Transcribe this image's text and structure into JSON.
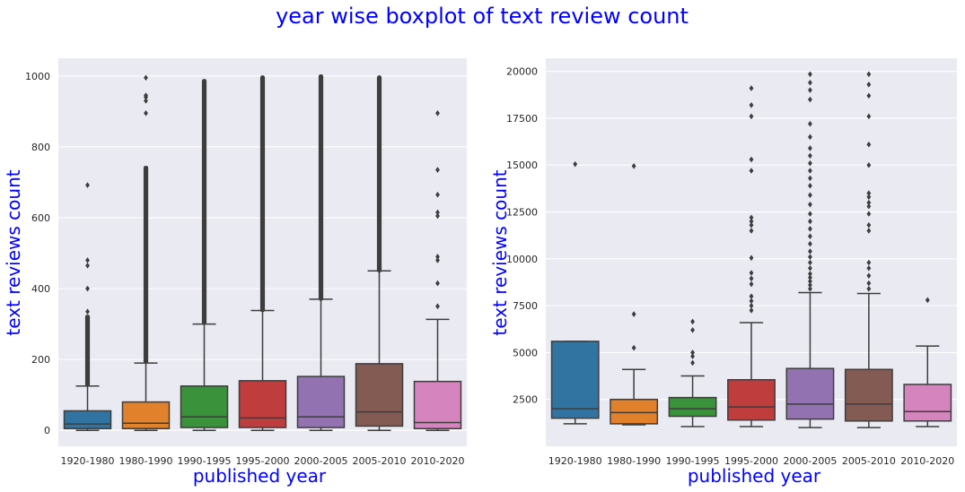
{
  "figure": {
    "title": "year wise boxplot of text review count"
  },
  "chart_data": [
    {
      "type": "box",
      "xlabel": "published year",
      "ylabel": "text reviews count",
      "ylim": [
        -45,
        1050
      ],
      "yticks": [
        0,
        200,
        400,
        600,
        800,
        1000
      ],
      "grid": true,
      "categories": [
        "1920-1980",
        "1980-1990",
        "1990-1995",
        "1995-2000",
        "2000-2005",
        "2005-2010",
        "2010-2020"
      ],
      "colors": [
        "#3274a1",
        "#e1812c",
        "#3a923a",
        "#c03d3e",
        "#9372b2",
        "#845b53",
        "#d684bd"
      ],
      "boxes": [
        {
          "whislo": 0,
          "q1": 5,
          "med": 18,
          "q3": 55,
          "whishi": 125,
          "outlier_range": [
            130,
            320
          ],
          "fliers": [
            132,
            145,
            160,
            175,
            190,
            210,
            232,
            250,
            260,
            290,
            315,
            335,
            400,
            465,
            480,
            692
          ]
        },
        {
          "whislo": 0,
          "q1": 5,
          "med": 20,
          "q3": 80,
          "whishi": 190,
          "outlier_range": [
            195,
            740
          ],
          "fliers": [
            895,
            930,
            940,
            945,
            995
          ]
        },
        {
          "whislo": 0,
          "q1": 8,
          "med": 38,
          "q3": 125,
          "whishi": 300,
          "outlier_range": [
            305,
            985
          ],
          "fliers": []
        },
        {
          "whislo": 0,
          "q1": 8,
          "med": 35,
          "q3": 140,
          "whishi": 338,
          "outlier_range": [
            340,
            995
          ],
          "fliers": []
        },
        {
          "whislo": 0,
          "q1": 8,
          "med": 38,
          "q3": 152,
          "whishi": 370,
          "outlier_range": [
            372,
            998
          ],
          "fliers": []
        },
        {
          "whislo": 0,
          "q1": 12,
          "med": 52,
          "q3": 188,
          "whishi": 450,
          "outlier_range": [
            452,
            995
          ],
          "fliers": []
        },
        {
          "whislo": 0,
          "q1": 5,
          "med": 22,
          "q3": 138,
          "whishi": 313,
          "outlier_range": null,
          "fliers": [
            350,
            415,
            480,
            490,
            605,
            615,
            665,
            735,
            895
          ]
        }
      ]
    },
    {
      "type": "box",
      "xlabel": "published year",
      "ylabel": "text reviews count",
      "ylim": [
        0,
        20700
      ],
      "yticks": [
        2500,
        5000,
        7500,
        10000,
        12500,
        15000,
        17500,
        20000
      ],
      "grid": true,
      "categories": [
        "1920-1980",
        "1980-1990",
        "1990-1995",
        "1995-2000",
        "2000-2005",
        "2005-2010",
        "2010-2020"
      ],
      "colors": [
        "#3274a1",
        "#e1812c",
        "#3a923a",
        "#c03d3e",
        "#9372b2",
        "#845b53",
        "#d684bd"
      ],
      "boxes": [
        {
          "whislo": 1200,
          "q1": 1500,
          "med": 2000,
          "q3": 5600,
          "whishi": 5600,
          "fliers": [
            15050
          ]
        },
        {
          "whislo": 1150,
          "q1": 1200,
          "med": 1800,
          "q3": 2500,
          "whishi": 4100,
          "fliers": [
            5250,
            7050,
            14950
          ]
        },
        {
          "whislo": 1050,
          "q1": 1600,
          "med": 2000,
          "q3": 2600,
          "whishi": 3750,
          "fliers": [
            4450,
            4800,
            5000,
            6200,
            6650
          ]
        },
        {
          "whislo": 1050,
          "q1": 1400,
          "med": 2100,
          "q3": 3550,
          "whishi": 6600,
          "fliers": [
            7250,
            7500,
            7750,
            8000,
            8650,
            8950,
            9250,
            10050,
            11500,
            11800,
            12000,
            12200,
            14700,
            15300,
            17600,
            18200,
            19100
          ]
        },
        {
          "whislo": 1000,
          "q1": 1450,
          "med": 2250,
          "q3": 4150,
          "whishi": 8200,
          "fliers": [
            8400,
            8600,
            8800,
            9000,
            9200,
            9500,
            9800,
            10100,
            10400,
            10800,
            11200,
            11600,
            12000,
            12400,
            12900,
            13400,
            13900,
            14300,
            14700,
            15100,
            15500,
            15900,
            16500,
            17200,
            18500,
            19000,
            19400,
            19850
          ]
        },
        {
          "whislo": 1000,
          "q1": 1350,
          "med": 2250,
          "q3": 4100,
          "whishi": 8150,
          "fliers": [
            8400,
            8700,
            9100,
            9500,
            9800,
            11500,
            11800,
            12400,
            12800,
            13000,
            13300,
            13500,
            15000,
            16100,
            17600,
            18700,
            19300,
            19850
          ]
        },
        {
          "whislo": 1050,
          "q1": 1350,
          "med": 1850,
          "q3": 3300,
          "whishi": 5350,
          "fliers": [
            7800
          ]
        }
      ]
    }
  ]
}
